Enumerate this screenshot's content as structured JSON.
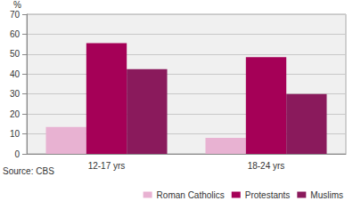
{
  "chart_data": {
    "type": "bar",
    "ylabel": "%",
    "source": "Source: CBS",
    "categories": [
      "12-17 yrs",
      "18-24 yrs"
    ],
    "series": [
      {
        "name": "Roman Catholics",
        "color": "#e8b2d2",
        "values": [
          13.5,
          8
        ]
      },
      {
        "name": "Protestants",
        "color": "#a50057",
        "values": [
          55.5,
          48.5
        ]
      },
      {
        "name": "Muslims",
        "color": "#8a1a5c",
        "values": [
          42.5,
          30
        ]
      }
    ],
    "ylim": [
      0,
      70
    ],
    "yticks": [
      0,
      10,
      20,
      30,
      40,
      50,
      60,
      70
    ],
    "grid": true,
    "legend": "bottom-right"
  }
}
